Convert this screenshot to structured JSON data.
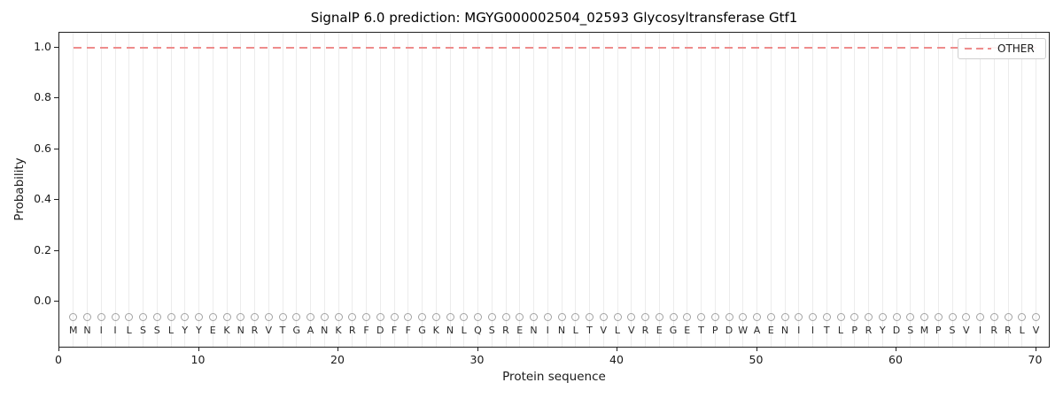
{
  "chart_data": {
    "type": "line",
    "title": "SignalP 6.0 prediction: MGYG000002504_02593 Glycosyltransferase Gtf1",
    "xlabel": "Protein sequence",
    "ylabel": "Probability",
    "x_ticks": [
      0,
      10,
      20,
      30,
      40,
      50,
      60,
      70
    ],
    "x_tick_labels": [
      "0",
      "10",
      "20",
      "30",
      "40",
      "50",
      "60",
      "70"
    ],
    "y_ticks": [
      0.0,
      0.2,
      0.4,
      0.6,
      0.8,
      1.0
    ],
    "y_tick_labels": [
      "0.0",
      "0.2",
      "0.4",
      "0.6",
      "0.8",
      "1.0"
    ],
    "xlim": [
      0,
      71
    ],
    "ylim": [
      -0.185,
      1.06
    ],
    "grid": "vertical line at every residue position",
    "legend": {
      "position": "upper-right",
      "label": "OTHER"
    },
    "series": [
      {
        "name": "OTHER",
        "style": "dashed",
        "color": "#ee8c8c",
        "x_start": 1,
        "x_end": 70,
        "constant_y": 1.0
      }
    ],
    "sequence": "MNIILSSLYYEKNRVTGANKRFDFFGKNLQSRENINLTVLVREGETPDWAENIITLPRYDSMPSVIRRLV",
    "residue_markers": {
      "shape": "open-circle",
      "color": "#a3a3a3",
      "y": -0.06
    },
    "colors": {
      "line": "#ee8c8c",
      "grid": "#ececec",
      "marker_stroke": "#a3a3a3",
      "letters": "#2b2b2b",
      "axis": "#1f1f1f"
    }
  }
}
